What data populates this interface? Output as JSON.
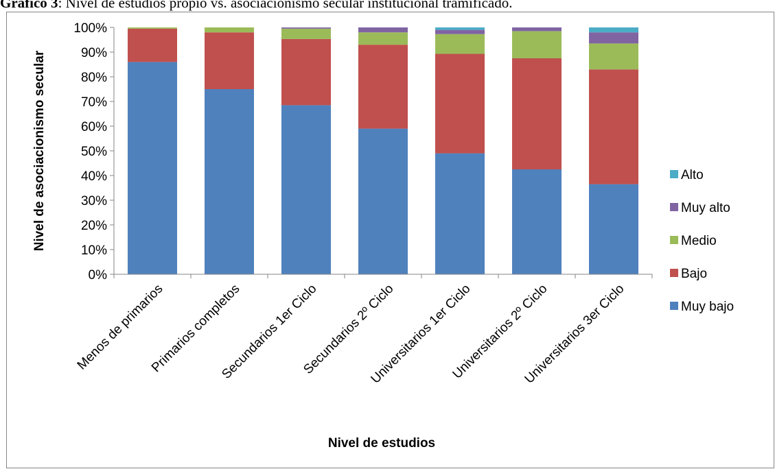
{
  "caption": {
    "label": "Gráfico 3",
    "text": ": Nivel de estudios propio vs. asociacionismo secular institucional tramificado."
  },
  "chart_data": {
    "type": "bar",
    "stacked": true,
    "categories": [
      "Menos de primarios",
      "Primarios completos",
      "Secundarios 1er Ciclo",
      "Secundarios 2º Ciclo",
      "Universitarios 1er Ciclo",
      "Universitarios 2º Ciclo",
      "Universitarios 3er Ciclo"
    ],
    "series": [
      {
        "name": "Muy bajo",
        "color": "#4f81bd",
        "values": [
          86,
          75,
          68.5,
          59,
          49,
          42.5,
          36.5
        ]
      },
      {
        "name": "Bajo",
        "color": "#c0504d",
        "values": [
          13.5,
          23,
          26.8,
          34,
          40.3,
          45,
          46.5
        ]
      },
      {
        "name": "Medio",
        "color": "#9bbb59",
        "values": [
          0.5,
          2,
          4.2,
          5,
          8,
          11,
          10.5
        ]
      },
      {
        "name": "Muy alto",
        "color": "#8064a2",
        "values": [
          0,
          0,
          0.5,
          2,
          1.7,
          1.5,
          4.5
        ]
      },
      {
        "name": "Alto",
        "color": "#4bacc6",
        "values": [
          0,
          0,
          0,
          0,
          1,
          0,
          2
        ]
      }
    ],
    "legend_order": [
      "Alto",
      "Muy alto",
      "Medio",
      "Bajo",
      "Muy bajo"
    ],
    "legend_position": "right",
    "y_ticks": [
      "0%",
      "10%",
      "20%",
      "30%",
      "40%",
      "50%",
      "60%",
      "70%",
      "80%",
      "90%",
      "100%"
    ],
    "ylim": [
      0,
      100
    ],
    "xlabel": "Nivel de estudios",
    "ylabel": "Nivel de asociacionismo secular",
    "grid": false
  }
}
